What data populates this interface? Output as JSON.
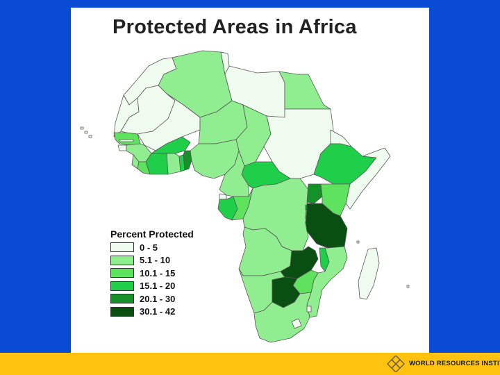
{
  "title": "Protected Areas in Africa",
  "legend": {
    "title": "Percent Protected",
    "classes": [
      {
        "label": "0 - 5",
        "color": "#f0fbf0"
      },
      {
        "label": "5.1 - 10",
        "color": "#90ee90"
      },
      {
        "label": "10.1 - 15",
        "color": "#5fe35f"
      },
      {
        "label": "15.1 - 20",
        "color": "#1fcf4a"
      },
      {
        "label": "20.1 - 30",
        "color": "#169028"
      },
      {
        "label": "30.1 - 42",
        "color": "#0a4f12"
      }
    ]
  },
  "footer": {
    "organization": "WORLD RESOURCES INSTITUTE"
  },
  "colors": {
    "background": "#0a4bd6",
    "footer": "#ffc20e",
    "border": "#555555"
  }
}
